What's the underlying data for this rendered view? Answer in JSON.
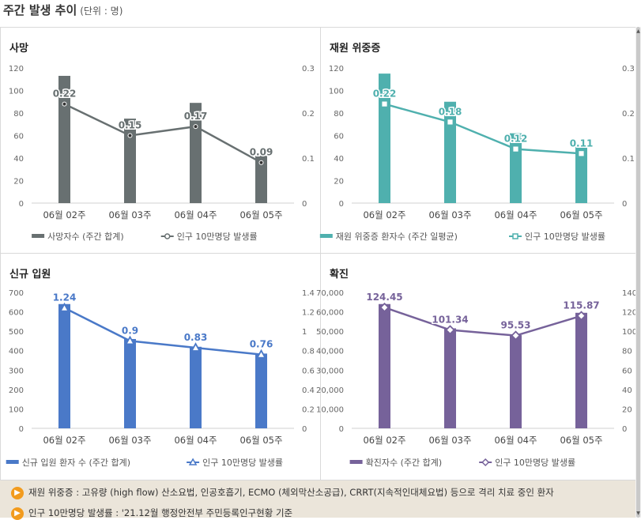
{
  "header": {
    "title": "주간 발생 추이",
    "unit": "(단위 : 명)"
  },
  "colors": {
    "deaths": "#687071",
    "severe": "#4fb0ae",
    "admissions": "#4a79c8",
    "confirmed": "#76629a",
    "footer_bg": "#ebe5da",
    "bullet": "#f29b1d"
  },
  "chart_data": [
    {
      "type": "bar",
      "title": "사망",
      "categories": [
        "06월 02주",
        "06월 03주",
        "06월 04주",
        "06월 05주"
      ],
      "series": [
        {
          "name": "사망자수 (주간 합계)",
          "type": "bar",
          "axis": "left",
          "values": [
            113,
            75,
            89,
            42
          ]
        },
        {
          "name": "인구 10만명당 발생률",
          "type": "line",
          "axis": "right",
          "marker": "circle",
          "values": [
            0.22,
            0.15,
            0.17,
            0.09
          ]
        }
      ],
      "ylim_left": [
        0,
        120
      ],
      "yticks_left": [
        "0",
        "20",
        "40",
        "60",
        "80",
        "100",
        "120"
      ],
      "ylim_right": [
        0,
        0.3
      ],
      "yticks_right": [
        "0",
        "0.1",
        "0.2",
        "0.3"
      ]
    },
    {
      "type": "bar",
      "title": "재원 위중증",
      "categories": [
        "06월 02주",
        "06월 03주",
        "06월 04주",
        "06월 05주"
      ],
      "series": [
        {
          "name": "재원 위중증 환자수 (주간 일평균)",
          "type": "bar",
          "axis": "left",
          "values": [
            115,
            90,
            62,
            50
          ]
        },
        {
          "name": "인구 10만명당 발생률",
          "type": "line",
          "axis": "right",
          "marker": "square",
          "values": [
            0.22,
            0.18,
            0.12,
            0.11
          ]
        }
      ],
      "ylim_left": [
        0,
        120
      ],
      "yticks_left": [
        "0",
        "20",
        "40",
        "60",
        "80",
        "100",
        "120"
      ],
      "ylim_right": [
        0,
        0.3
      ],
      "yticks_right": [
        "0",
        "0.1",
        "0.2",
        "0.3"
      ]
    },
    {
      "type": "bar",
      "title": "신규 입원",
      "categories": [
        "06월 02주",
        "06월 03주",
        "06월 04주",
        "06월 05주"
      ],
      "series": [
        {
          "name": "신규 입원 환자 수 (주간 합계)",
          "type": "bar",
          "axis": "left",
          "values": [
            640,
            460,
            420,
            385
          ]
        },
        {
          "name": "인구 10만명당 발생률",
          "type": "line",
          "axis": "right",
          "marker": "triangle",
          "values": [
            1.24,
            0.9,
            0.83,
            0.76
          ]
        }
      ],
      "ylim_left": [
        0,
        700
      ],
      "yticks_left": [
        "0",
        "100",
        "200",
        "300",
        "400",
        "500",
        "600",
        "700"
      ],
      "ylim_right": [
        0,
        1.4
      ],
      "yticks_right": [
        "0",
        "0.2",
        "0.4",
        "0.6",
        "0.8",
        "1",
        "1.2",
        "1.4"
      ]
    },
    {
      "type": "bar",
      "title": "확진",
      "categories": [
        "06월 02주",
        "06월 03주",
        "06월 04주",
        "06월 05주"
      ],
      "series": [
        {
          "name": "확진자수 (주간 합계)",
          "type": "bar",
          "axis": "left",
          "values": [
            64000,
            51500,
            48000,
            59500
          ]
        },
        {
          "name": "인구 10만명당 발생률",
          "type": "line",
          "axis": "right",
          "marker": "diamond",
          "values": [
            124.45,
            101.34,
            95.53,
            115.87
          ]
        }
      ],
      "ylim_left": [
        0,
        70000
      ],
      "yticks_left": [
        "0",
        "10,000",
        "20,000",
        "30,000",
        "40,000",
        "50,000",
        "60,000",
        "70,000"
      ],
      "ylim_right": [
        0,
        140
      ],
      "yticks_right": [
        "0",
        "20",
        "40",
        "60",
        "80",
        "100",
        "120",
        "140"
      ]
    }
  ],
  "notes": [
    "재원 위중증 : 고유량 (high flow) 산소요법, 인공호흡기, ECMO (체외막산소공급), CRRT(지속적인대체요법) 등으로 격리 치료 중인 환자",
    "인구 10만명당 발생률 : '21.12월 행정안전부 주민등록인구현황 기준"
  ]
}
